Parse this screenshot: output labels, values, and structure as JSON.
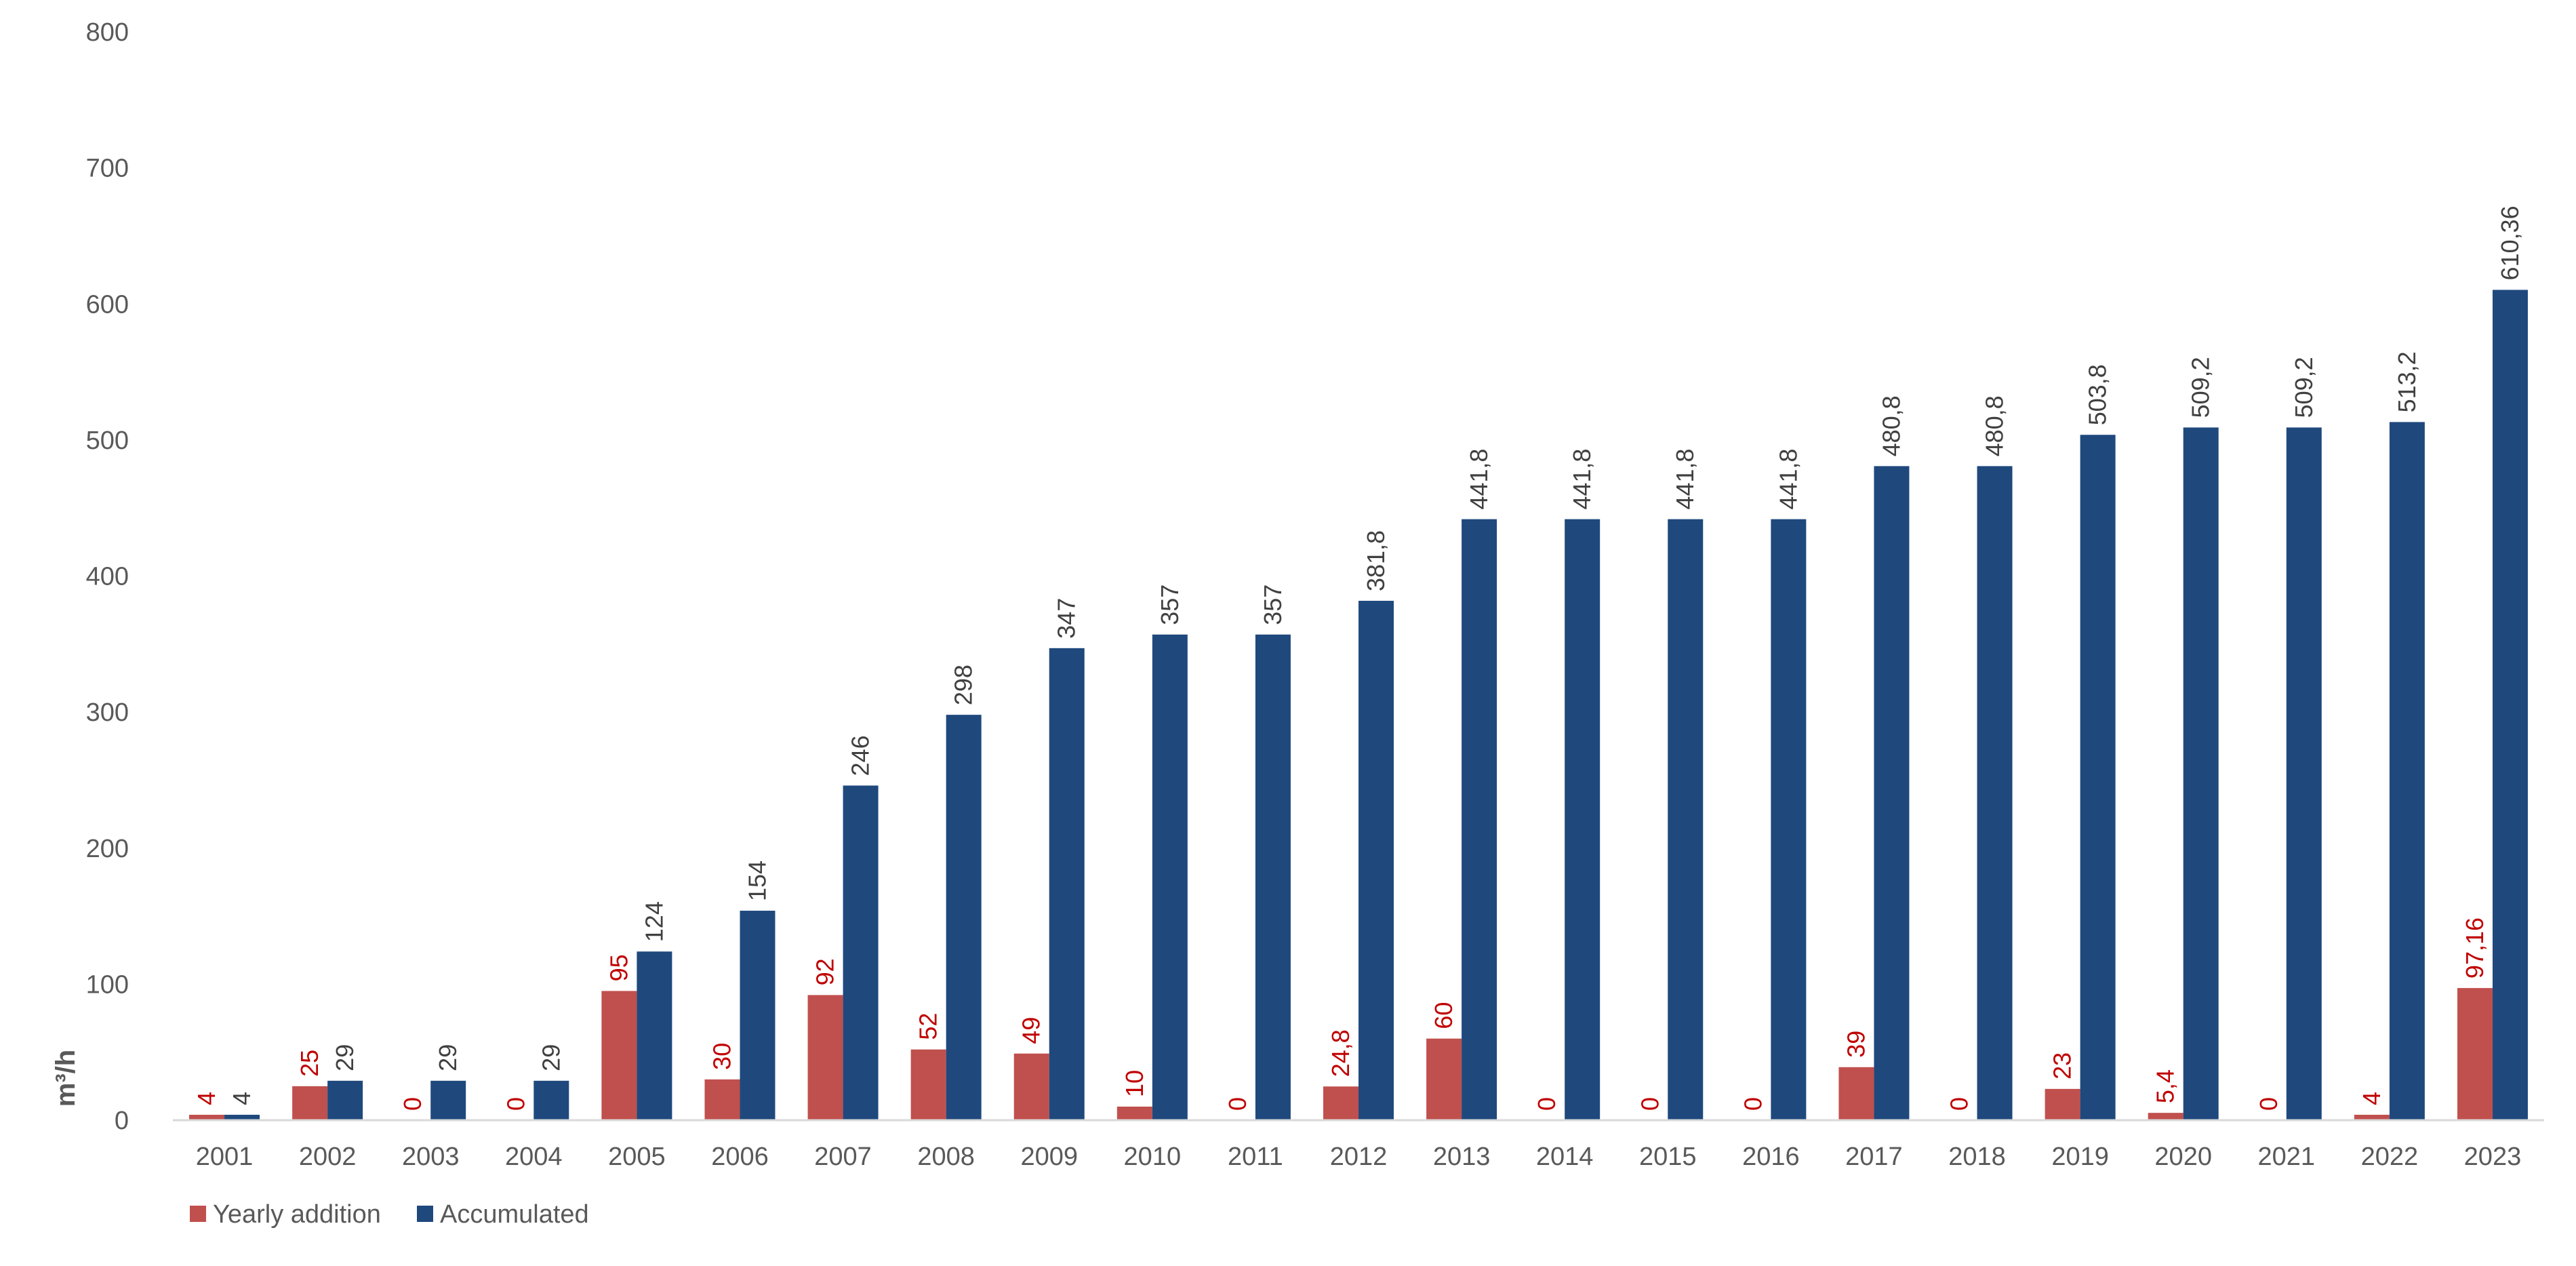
{
  "chart_data": {
    "type": "bar",
    "title": "",
    "xlabel": "",
    "ylabel": "m³/h",
    "ylim": [
      0,
      800
    ],
    "yticks": [
      "0",
      "100",
      "200",
      "300",
      "400",
      "500",
      "600",
      "700",
      "800"
    ],
    "grid": false,
    "legend_position": "bottom-left",
    "categories": [
      "2001",
      "2002",
      "2003",
      "2004",
      "2005",
      "2006",
      "2007",
      "2008",
      "2009",
      "2010",
      "2011",
      "2012",
      "2013",
      "2014",
      "2015",
      "2016",
      "2017",
      "2018",
      "2019",
      "2020",
      "2021",
      "2022",
      "2023"
    ],
    "series": [
      {
        "name": "Yearly addition",
        "color": "#C0504D",
        "label_color": "#C00000",
        "values": [
          4,
          25,
          0,
          0,
          95,
          30,
          92,
          52,
          49,
          10,
          0,
          24.8,
          60,
          0,
          0,
          0,
          39,
          0,
          23,
          5.4,
          0,
          4,
          97.16
        ],
        "labels": [
          "4",
          "25",
          "0",
          "0",
          "95",
          "30",
          "92",
          "52",
          "49",
          "10",
          "0",
          "24,8",
          "60",
          "0",
          "0",
          "0",
          "39",
          "0",
          "23",
          "5,4",
          "0",
          "4",
          "97,16"
        ]
      },
      {
        "name": "Accumulated",
        "color": "#1F497D",
        "label_color": "#404040",
        "values": [
          4,
          29,
          29,
          29,
          124,
          154,
          246,
          298,
          347,
          357,
          357,
          381.8,
          441.8,
          441.8,
          441.8,
          441.8,
          480.8,
          480.8,
          503.8,
          509.2,
          509.2,
          513.2,
          610.36
        ],
        "labels": [
          "4",
          "29",
          "29",
          "29",
          "124",
          "154",
          "246",
          "298",
          "347",
          "357",
          "357",
          "381,8",
          "441,8",
          "441,8",
          "441,8",
          "441,8",
          "480,8",
          "480,8",
          "503,8",
          "509,2",
          "509,2",
          "513,2",
          "610,36"
        ]
      }
    ],
    "axis_color": "#D9D9D9",
    "tick_color": "#595959"
  }
}
